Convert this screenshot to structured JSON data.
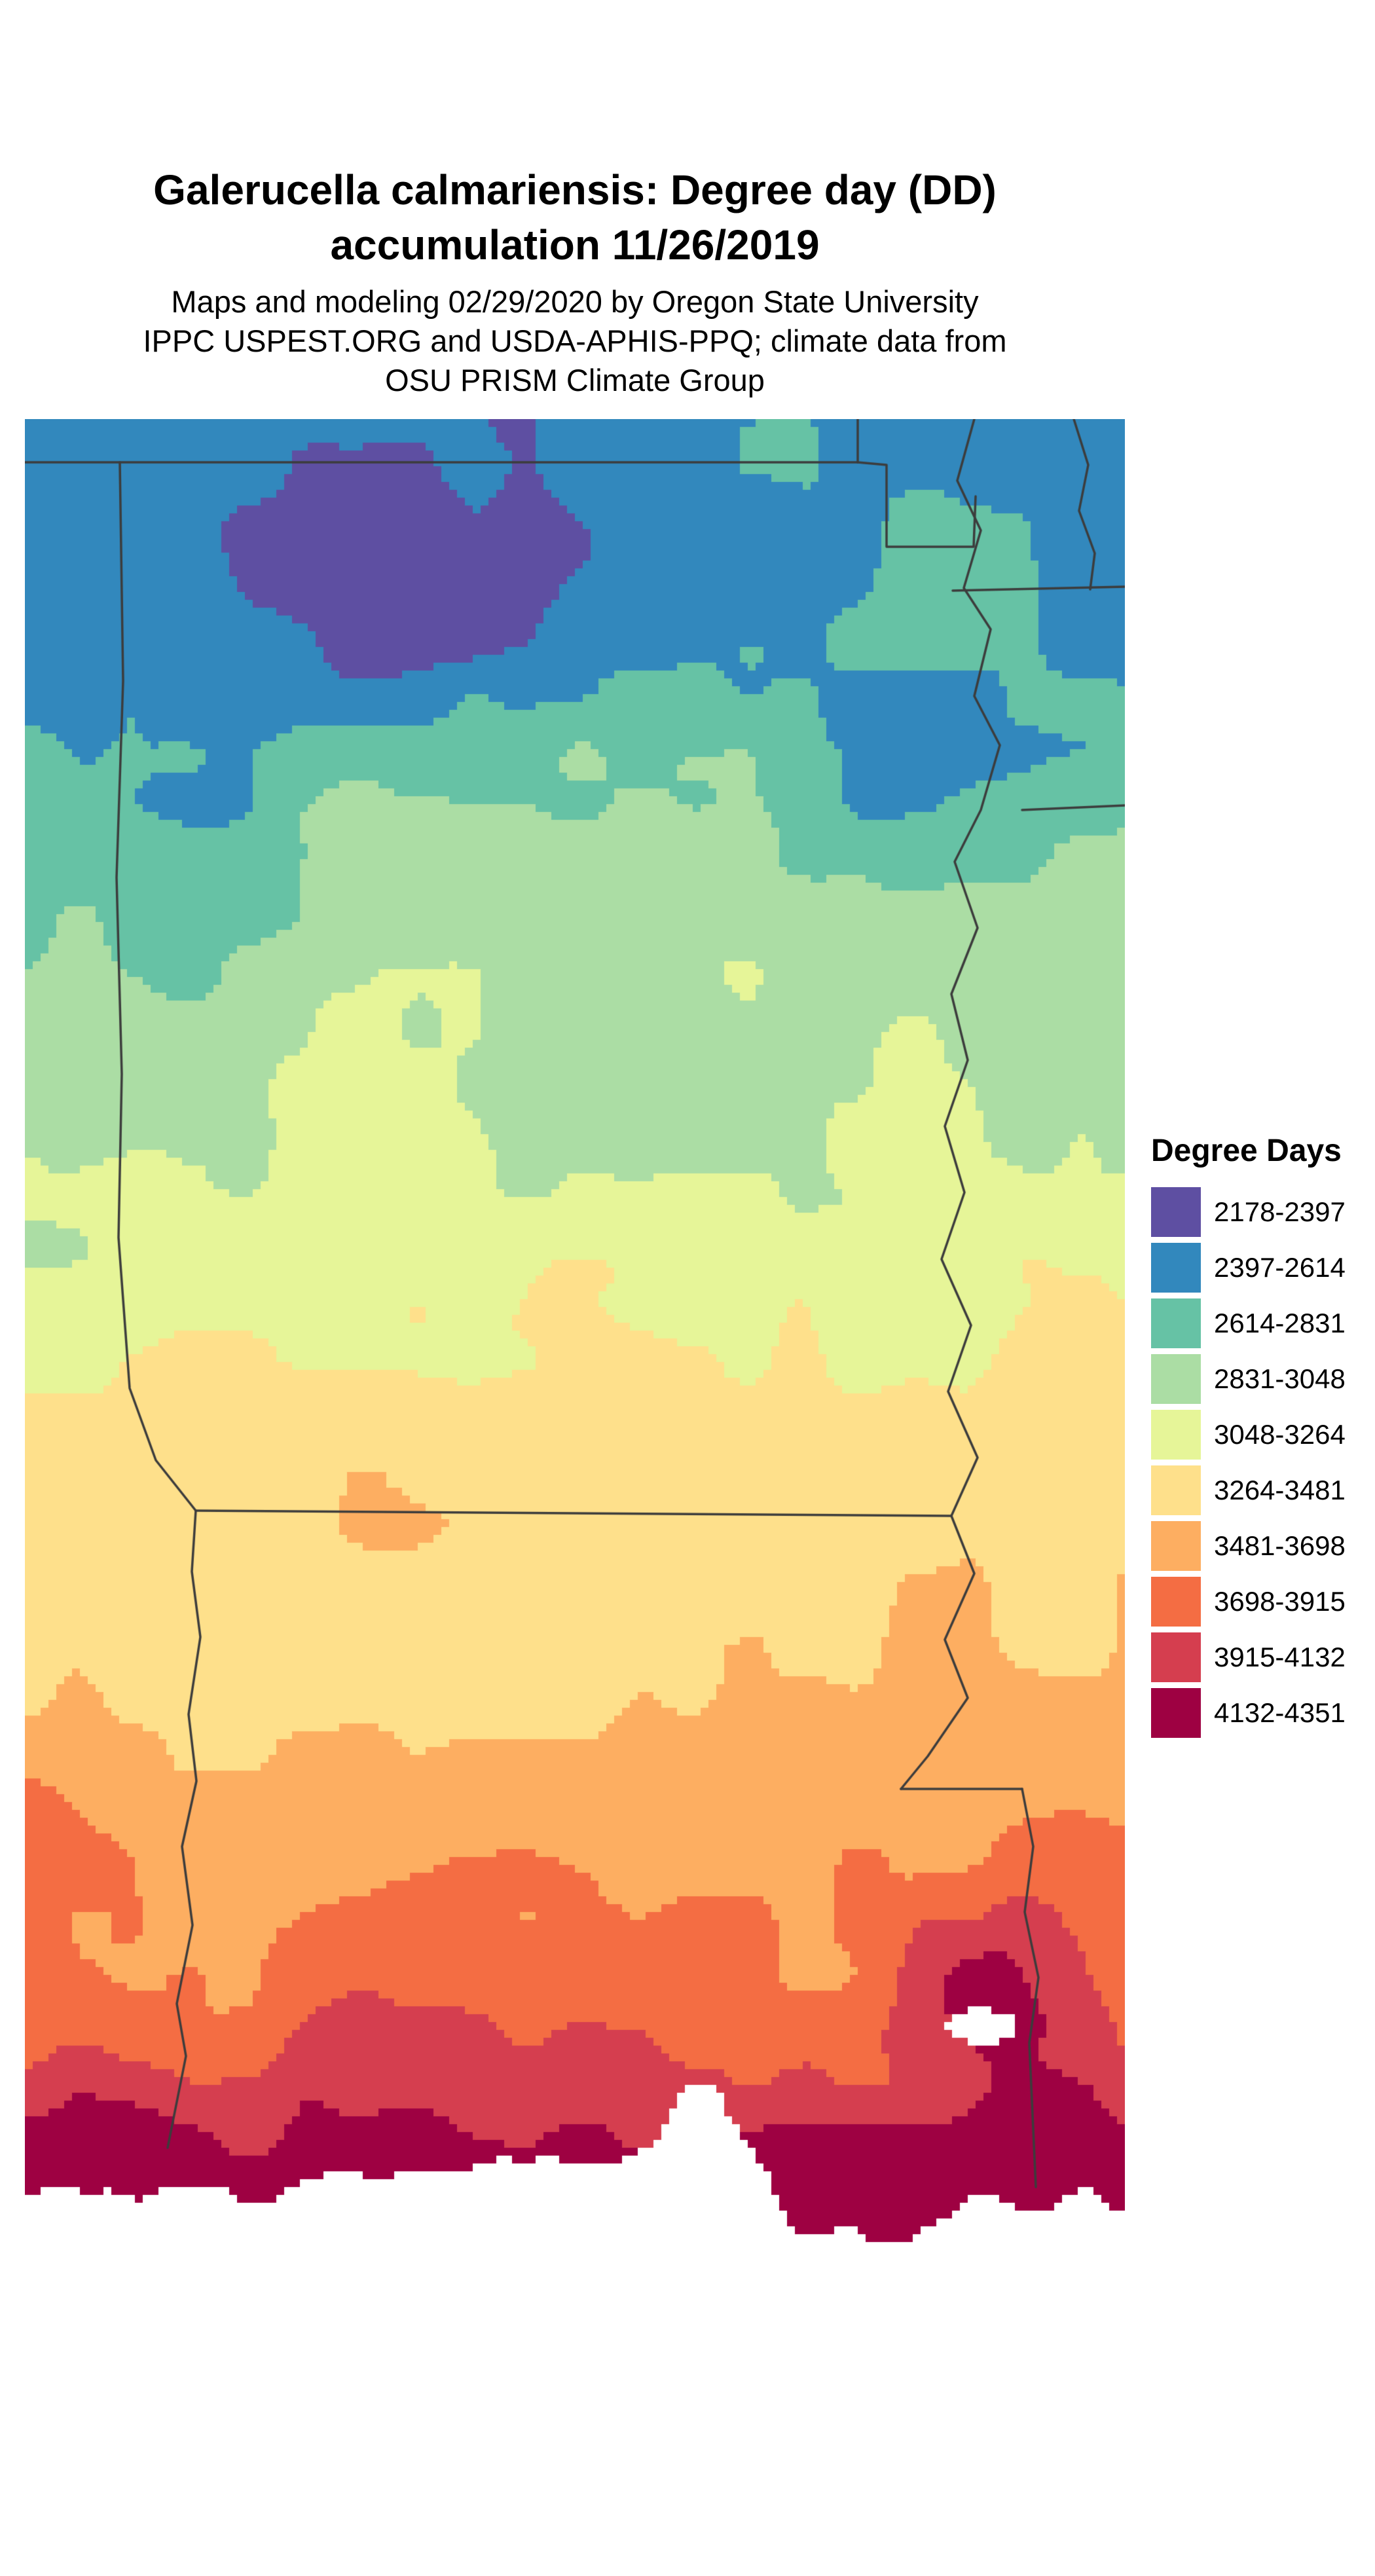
{
  "page": {
    "background": "#ffffff"
  },
  "header": {
    "title_line1": "Galerucella calmariensis: Degree day (DD)",
    "title_line2": "accumulation 11/26/2019",
    "subtitle_line1": "Maps and modeling 02/29/2020 by Oregon State University",
    "subtitle_line2": "IPPC USPEST.ORG and USDA-APHIS-PPQ; climate data from",
    "subtitle_line3": "OSU PRISM Climate Group"
  },
  "legend": {
    "title": "Degree Days",
    "entries": [
      {
        "label": "2178-2397",
        "color": "#5e4fa2"
      },
      {
        "label": "2397-2614",
        "color": "#3288bd"
      },
      {
        "label": "2614-2831",
        "color": "#66c2a5"
      },
      {
        "label": "2831-3048",
        "color": "#abdda4"
      },
      {
        "label": "3048-3264",
        "color": "#e6f598"
      },
      {
        "label": "3264-3481",
        "color": "#fee08b"
      },
      {
        "label": "3481-3698",
        "color": "#fdae61"
      },
      {
        "label": "3698-3915",
        "color": "#f46d43"
      },
      {
        "label": "3915-4132",
        "color": "#d53e4f"
      },
      {
        "label": "4132-4351",
        "color": "#9e0142"
      }
    ]
  },
  "map": {
    "description": "Degree day accumulation raster map of south-central United States (Arkansas, Louisiana, Mississippi region) with state boundary lines",
    "state_line_color": "#3c3c3c",
    "no_data_color": "#ffffff"
  }
}
